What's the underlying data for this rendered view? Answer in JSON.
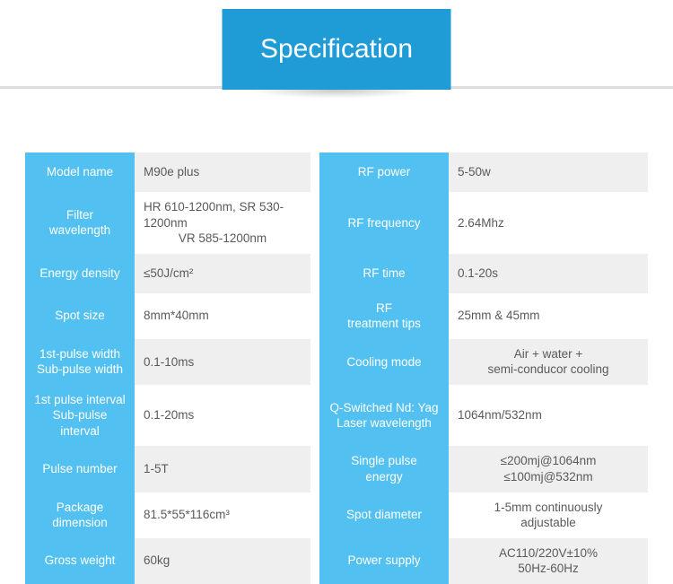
{
  "header": {
    "title": "Specification"
  },
  "colors": {
    "tab_bg": "#1f9cd6",
    "label_bg": "#52c1f1",
    "value_odd_bg": "#efefef",
    "value_even_bg": "#ffffff",
    "value_text": "#5a5a5a",
    "divider": "#dedede"
  },
  "spec": {
    "left": [
      {
        "label": "Model name",
        "value": "M90e plus"
      },
      {
        "label": "Filter\nwavelength",
        "value": "HR 610-1200nm, SR 530-1200nm\nVR 585-1200nm"
      },
      {
        "label": "Energy density",
        "value": "≤50J/cm²"
      },
      {
        "label": "Spot size",
        "value": "8mm*40mm"
      },
      {
        "label": "1st-pulse width\nSub-pulse width",
        "value": "0.1-10ms"
      },
      {
        "label": "1st pulse interval\nSub-pulse interval",
        "value": "0.1-20ms"
      },
      {
        "label": "Pulse number",
        "value": "1-5T"
      },
      {
        "label": "Package\ndimension",
        "value": "81.5*55*116cm³"
      },
      {
        "label": "Gross weight",
        "value": "60kg"
      }
    ],
    "right": [
      {
        "label": "RF power",
        "value": "5-50w"
      },
      {
        "label": "RF frequency",
        "value": "2.64Mhz"
      },
      {
        "label": "RF time",
        "value": "0.1-20s"
      },
      {
        "label": "RF\ntreatment tips",
        "value": "25mm & 45mm"
      },
      {
        "label": "Cooling mode",
        "value": "Air + water +\nsemi-conducor cooling"
      },
      {
        "label": "Q-Switched Nd: Yag\nLaser wavelength",
        "value": "1064nm/532nm"
      },
      {
        "label": "Single pulse\nenergy",
        "value": "≤200mj@1064nm\n≤100mj@532nm"
      },
      {
        "label": "Spot diameter",
        "value": "1-5mm continuously\nadjustable"
      },
      {
        "label": "Power supply",
        "value": "AC110/220V±10%\n50Hz-60Hz"
      }
    ]
  }
}
